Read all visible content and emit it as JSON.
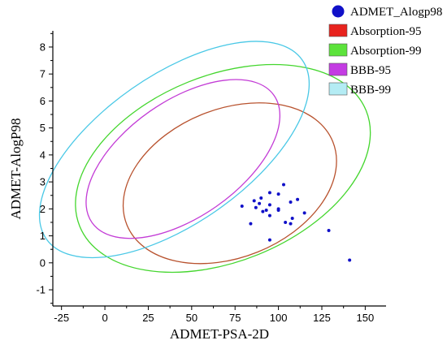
{
  "chart_data": {
    "type": "scatter",
    "xlabel": "ADMET-PSA-2D",
    "ylabel": "ADMET-AlogP98",
    "xlim": [
      -30,
      162
    ],
    "ylim": [
      -1.6,
      8.6
    ],
    "xticks": [
      -25,
      0,
      25,
      50,
      75,
      100,
      125,
      150
    ],
    "yticks": [
      -1,
      0,
      1,
      2,
      3,
      4,
      5,
      6,
      7,
      8
    ],
    "legend_position": "top-right",
    "points_series": {
      "name": "ADMET_Alogp98",
      "color": "#1010c8",
      "points": [
        [
          79,
          2.1
        ],
        [
          84,
          1.45
        ],
        [
          86,
          2.3
        ],
        [
          87,
          2.05
        ],
        [
          89,
          2.2
        ],
        [
          90,
          2.4
        ],
        [
          91,
          1.9
        ],
        [
          93,
          1.95
        ],
        [
          95,
          2.6
        ],
        [
          95,
          2.15
        ],
        [
          95,
          1.75
        ],
        [
          95,
          0.85
        ],
        [
          100,
          2.55
        ],
        [
          100,
          2.0
        ],
        [
          100,
          1.95
        ],
        [
          103,
          2.9
        ],
        [
          104,
          1.5
        ],
        [
          107,
          2.25
        ],
        [
          107,
          1.45
        ],
        [
          108,
          1.65
        ],
        [
          111,
          2.35
        ],
        [
          115,
          1.85
        ],
        [
          129,
          1.2
        ],
        [
          141,
          0.1
        ]
      ]
    },
    "ellipses": [
      {
        "name": "Absorption-95",
        "color": "#b8522e",
        "legend_color": "#e8231e",
        "cx": 72,
        "cy": 2.95,
        "rx": 64,
        "ry": 2.75,
        "angle": -22
      },
      {
        "name": "Absorption-99",
        "color": "#44d62e",
        "legend_color": "#5ce33b",
        "cx": 68,
        "cy": 3.5,
        "rx": 89,
        "ry": 3.45,
        "angle": -22
      },
      {
        "name": "BBB-95",
        "color": "#c33cd6",
        "legend_color": "#c43ce3",
        "cx": 45,
        "cy": 3.85,
        "rx": 64,
        "ry": 2.15,
        "angle": -35
      },
      {
        "name": "BBB-99",
        "color": "#49c8e6",
        "legend_color": "#b4ecf4",
        "cx": 40,
        "cy": 4.2,
        "rx": 90,
        "ry": 2.75,
        "angle": -35
      }
    ]
  }
}
